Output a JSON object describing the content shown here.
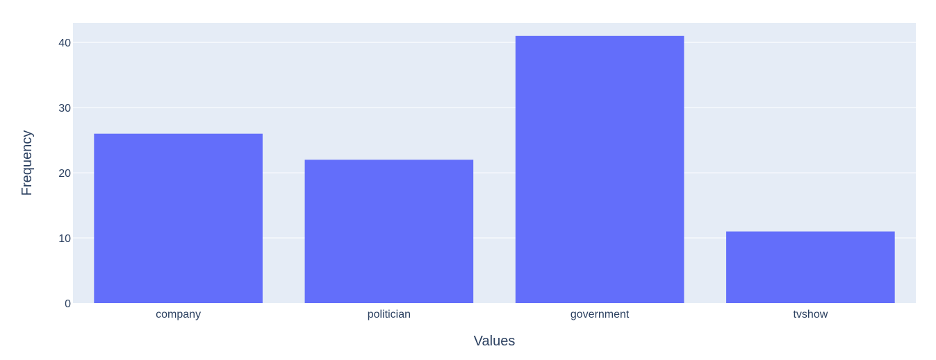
{
  "chart_data": {
    "type": "bar",
    "categories": [
      "company",
      "politician",
      "government",
      "tvshow"
    ],
    "values": [
      26,
      22,
      41,
      11
    ],
    "xlabel": "Values",
    "ylabel": "Frequency",
    "ylim": [
      0,
      43
    ],
    "yticks": [
      0,
      10,
      20,
      30,
      40
    ],
    "grid": true,
    "colors": {
      "bar": "#636efa",
      "plot_background": "#e5ecf6",
      "gridline": "#ffffff",
      "text": "#2a3f5f"
    }
  }
}
